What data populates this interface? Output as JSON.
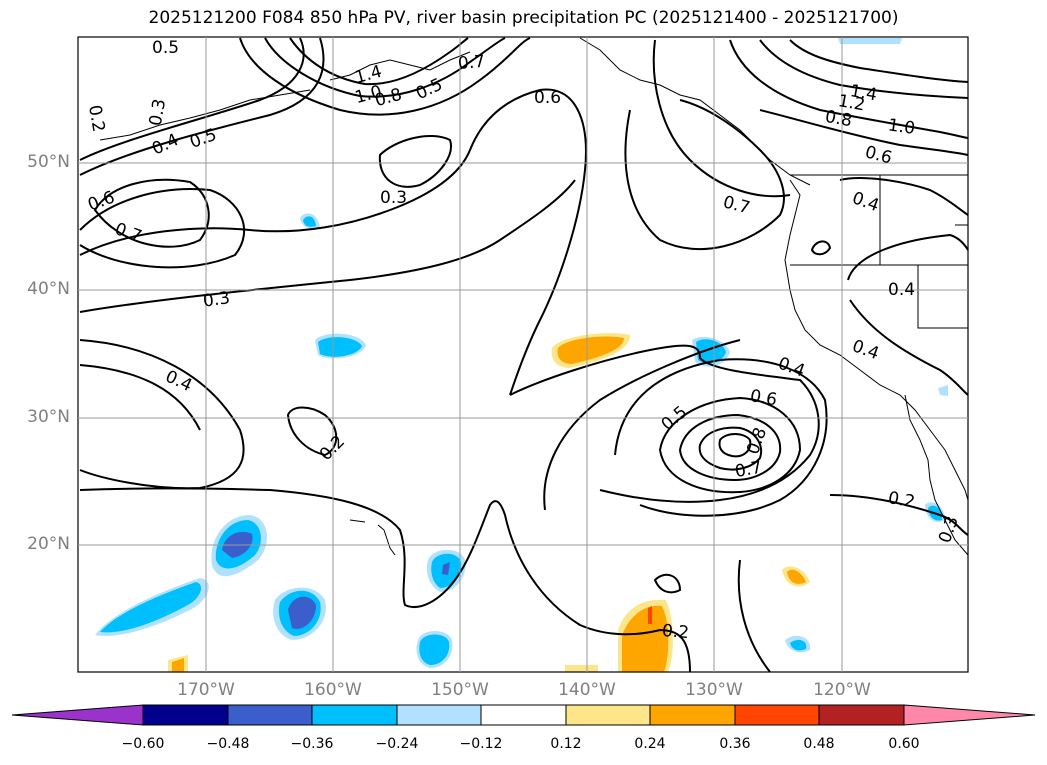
{
  "title": "2025121200 F084 850 hPa PV, river basin precipitation PC (2025121400 - 2025121700)",
  "map": {
    "lat_labels": [
      "50°N",
      "40°N",
      "30°N",
      "20°N"
    ],
    "lon_labels": [
      "170°W",
      "160°W",
      "150°W",
      "140°W",
      "130°W",
      "120°W"
    ],
    "contour_labels": [
      "0.5",
      "0.2",
      "0.3",
      "0.4",
      "0.5",
      "0.6",
      "0.7",
      "0.3",
      "0.3",
      "0.4",
      "0.2",
      "1.4",
      "1.0",
      "0.8",
      "0.5",
      "0.7",
      "0.6",
      "0.7",
      "1.4",
      "1.2",
      "1.0",
      "0.8",
      "0.6",
      "0.4",
      "0.4",
      "0.4",
      "0.4",
      "0.5",
      "0.6",
      "0.8",
      "0.7",
      "0.2",
      "0.3",
      "0.2"
    ]
  },
  "colorbar": {
    "ticks": [
      "−0.60",
      "−0.48",
      "−0.36",
      "−0.24",
      "−0.12",
      "0.12",
      "0.24",
      "0.36",
      "0.48",
      "0.60"
    ],
    "colors": [
      "#9933cc",
      "#00008b",
      "#3a5fcd",
      "#00bfff",
      "#b0e2ff",
      "#ffffff",
      "#fde68a",
      "#ffa500",
      "#ff4500",
      "#b22222",
      "#ff88aa"
    ]
  }
}
